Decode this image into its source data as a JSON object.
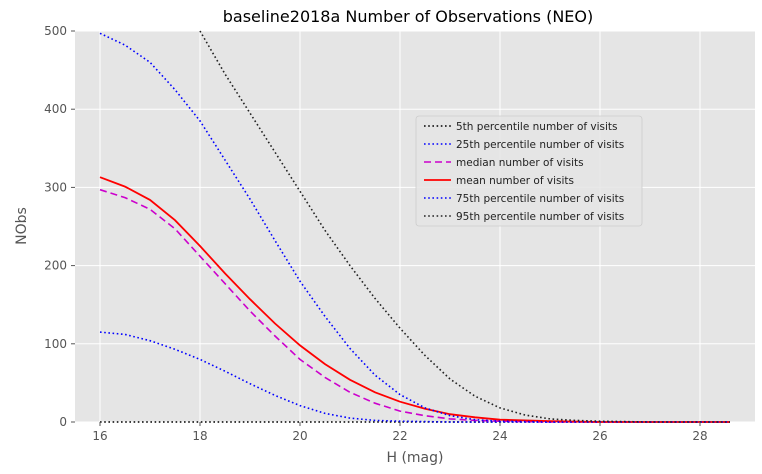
{
  "chart_data": {
    "type": "line",
    "title": "baseline2018a Number of Observations (NEO)",
    "xlabel": "H (mag)",
    "ylabel": "NObs",
    "xlim": [
      15.5,
      29.1
    ],
    "ylim": [
      0,
      500
    ],
    "xticks": [
      16,
      18,
      20,
      22,
      24,
      26,
      28
    ],
    "yticks": [
      0,
      100,
      200,
      300,
      400,
      500
    ],
    "grid": true,
    "legend_position": "upper-right",
    "series": [
      {
        "name": "5th percentile number of visits",
        "color": "#000000",
        "style": "dotted",
        "x": [
          16,
          28.6
        ],
        "y": [
          0,
          0
        ]
      },
      {
        "name": "25th percentile number of visits",
        "color": "#0000ff",
        "style": "dotted",
        "x": [
          16,
          16.5,
          17,
          17.5,
          18,
          18.5,
          19,
          19.5,
          20,
          20.5,
          21,
          21.5,
          22,
          23,
          24,
          28.6
        ],
        "y": [
          115,
          112,
          104,
          93,
          80,
          65,
          49,
          34,
          21,
          11,
          5,
          2,
          1,
          0,
          0,
          0
        ]
      },
      {
        "name": "median number of visits",
        "color": "#cc00cc",
        "style": "dashed",
        "x": [
          16,
          16.5,
          17,
          17.5,
          18,
          18.5,
          19,
          19.5,
          20,
          20.5,
          21,
          21.5,
          22,
          22.5,
          23,
          23.5,
          24,
          25,
          26,
          28.6
        ],
        "y": [
          297,
          287,
          272,
          247,
          212,
          177,
          142,
          110,
          80,
          57,
          38,
          24,
          14,
          8,
          4,
          2,
          1,
          0,
          0,
          0
        ]
      },
      {
        "name": "mean number of visits",
        "color": "#ff0000",
        "style": "solid",
        "x": [
          16,
          16.5,
          17,
          17.5,
          18,
          18.5,
          19,
          19.5,
          20,
          20.5,
          21,
          21.5,
          22,
          22.5,
          23,
          23.5,
          24,
          24.5,
          25,
          26,
          27,
          28.6
        ],
        "y": [
          313,
          301,
          284,
          258,
          225,
          190,
          157,
          126,
          98,
          74,
          54,
          38,
          26,
          17,
          10,
          6,
          3,
          2,
          1,
          0,
          0,
          0
        ]
      },
      {
        "name": "75th percentile number of visits",
        "color": "#0000ff",
        "style": "dotted",
        "x": [
          16,
          16.5,
          17,
          17.5,
          18,
          18.5,
          19,
          19.5,
          20,
          20.5,
          21,
          21.5,
          22,
          22.5,
          23,
          23.5,
          24,
          25,
          26,
          28.6
        ],
        "y": [
          497,
          482,
          460,
          425,
          385,
          335,
          285,
          232,
          180,
          135,
          94,
          60,
          35,
          18,
          8,
          3,
          1,
          0,
          0,
          0
        ]
      },
      {
        "name": "95th percentile number of visits",
        "color": "#222222",
        "style": "dotted",
        "x": [
          18,
          18.5,
          19,
          19.5,
          20,
          20.5,
          21,
          21.5,
          22,
          22.5,
          23,
          23.5,
          24,
          24.5,
          25,
          25.5,
          26,
          27,
          28.6
        ],
        "y": [
          500,
          445,
          395,
          345,
          295,
          245,
          200,
          158,
          120,
          85,
          55,
          33,
          18,
          9,
          4,
          2,
          1,
          0,
          0
        ]
      }
    ]
  }
}
